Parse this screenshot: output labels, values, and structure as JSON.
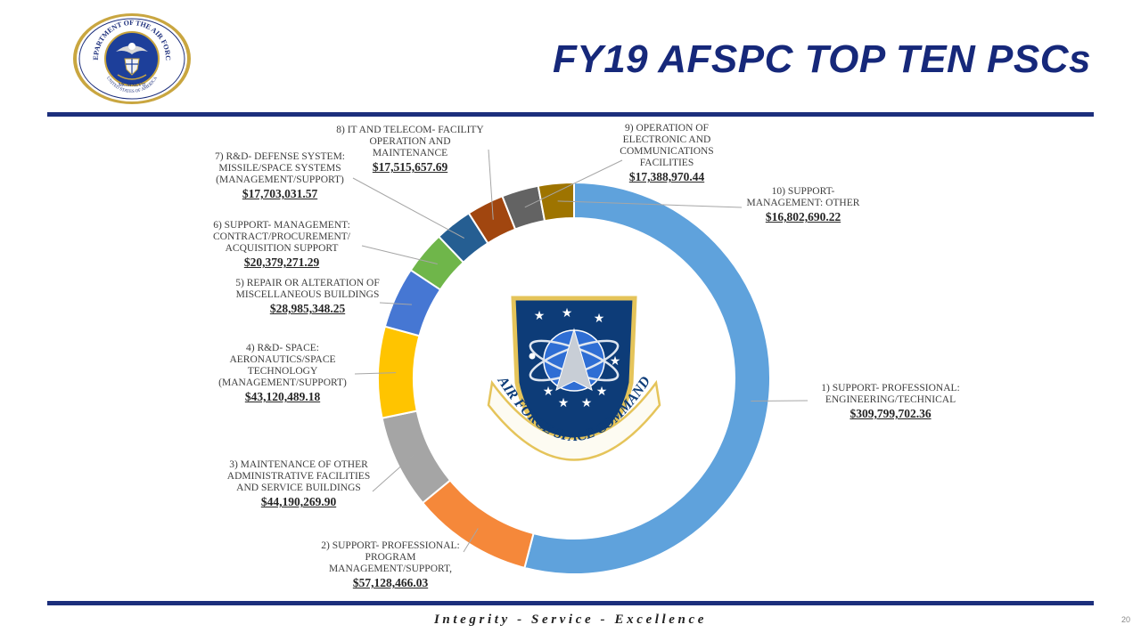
{
  "header": {
    "title": "FY19 AFSPC TOP TEN PSCs",
    "seal_text": "DEPARTMENT OF THE AIR FORCE",
    "seal_year": "MCMXLVII",
    "seal_bottom_text": "UNITED STATES OF AMERICA"
  },
  "center_emblem": {
    "banner_text": "AIR FORCE SPACE COMMAND"
  },
  "footer": {
    "motto": "Integrity - Service - Excellence",
    "page_number": "20"
  },
  "colors": {
    "title": "#16287a",
    "rule": "#1c2f7c"
  },
  "chart_data": {
    "type": "pie",
    "style": "doughnut",
    "legend": "none",
    "slices": [
      {
        "label": "1) SUPPORT- PROFESSIONAL: ENGINEERING/TECHNICAL",
        "value": 309799702.36,
        "display": "$309,799,702.36",
        "color": "#5fa2dc"
      },
      {
        "label": "2) SUPPORT- PROFESSIONAL: PROGRAM MANAGEMENT/SUPPORT,",
        "value": 57128466.03,
        "display": "$57,128,466.03",
        "color": "#f5883a"
      },
      {
        "label": "3) MAINTENANCE OF OTHER ADMINISTRATIVE FACILITIES AND SERVICE BUILDINGS",
        "value": 44190269.9,
        "display": "$44,190,269.90",
        "color": "#a5a5a5"
      },
      {
        "label": "4) R&D- SPACE: AERONAUTICS/SPACE TECHNOLOGY (MANAGEMENT/SUPPORT)",
        "value": 43120489.18,
        "display": "$43,120,489.18",
        "color": "#ffc400"
      },
      {
        "label": "5) REPAIR OR ALTERATION OF MISCELLANEOUS BUILDINGS",
        "value": 28985348.25,
        "display": "$28,985,348.25",
        "color": "#4677d3"
      },
      {
        "label": "6) SUPPORT- MANAGEMENT: CONTRACT/PROCUREMENT/ ACQUISITION SUPPORT",
        "value": 20379271.29,
        "display": "$20,379,271.29",
        "color": "#6fb64a"
      },
      {
        "label": "7) R&D- DEFENSE SYSTEM: MISSILE/SPACE SYSTEMS (MANAGEMENT/SUPPORT)",
        "value": 17703031.57,
        "display": "$17,703,031.57",
        "color": "#255e92"
      },
      {
        "label": "8) IT AND TELECOM- FACILITY OPERATION AND MAINTENANCE",
        "value": 17515657.69,
        "display": "$17,515,657.69",
        "color": "#a1460f"
      },
      {
        "label": "9) OPERATION OF ELECTRONIC AND COMMUNICATIONS FACILITIES",
        "value": 17388970.44,
        "display": "$17,388,970.44",
        "color": "#636363"
      },
      {
        "label": "10) SUPPORT- MANAGEMENT: OTHER",
        "value": 16802690.22,
        "display": "$16,802,690.22",
        "color": "#9e7400"
      }
    ]
  }
}
